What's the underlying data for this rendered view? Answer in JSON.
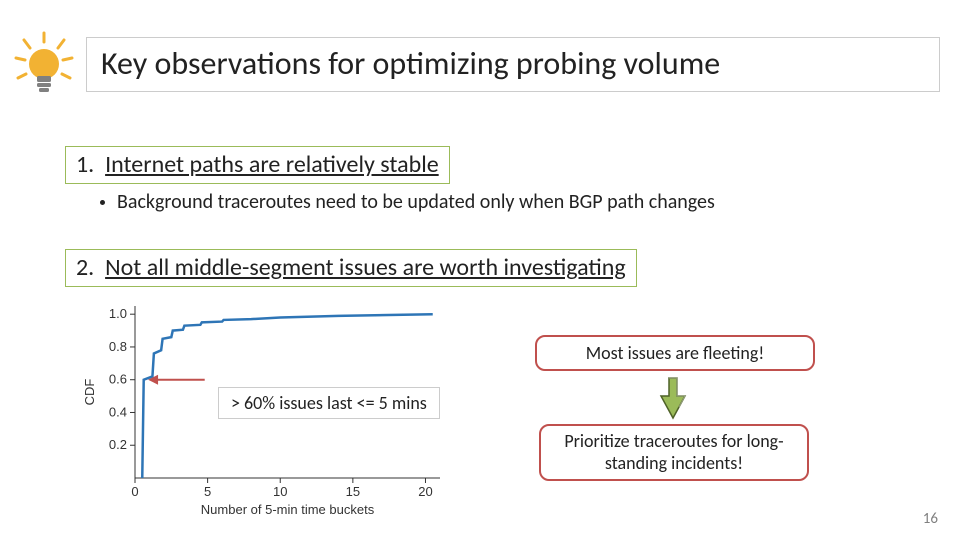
{
  "title": "Key observations for optimizing probing volume",
  "obs1": {
    "num": "1.",
    "text": "Internet paths are relatively stable",
    "bullet": "Background traceroutes need to be updated only when BGP path changes"
  },
  "obs2": {
    "num": "2.",
    "text": "Not all middle-segment issues are worth investigating"
  },
  "callout_60": "> 60% issues last <= 5 mins",
  "callout_fleeting": "Most issues are fleeting!",
  "callout_prioritize": "Prioritize traceroutes for long-standing incidents!",
  "page_number": "16",
  "chart": {
    "type": "line",
    "ylabel": "CDF",
    "xlabel": "Number of 5-min time buckets",
    "xlim": [
      0,
      21
    ],
    "ylim": [
      0,
      1.05
    ],
    "xticks": [
      0,
      5,
      10,
      15,
      20
    ],
    "yticks": [
      0.2,
      0.4,
      0.6,
      0.8,
      1.0
    ],
    "line_color": "#2e75b6",
    "line_width": 2.5,
    "axis_color": "#333333",
    "tick_fontsize": 13,
    "label_fontsize": 13,
    "data": [
      {
        "x": 0.5,
        "y": 0.0
      },
      {
        "x": 0.6,
        "y": 0.6
      },
      {
        "x": 1.2,
        "y": 0.62
      },
      {
        "x": 1.3,
        "y": 0.76
      },
      {
        "x": 1.8,
        "y": 0.78
      },
      {
        "x": 1.9,
        "y": 0.85
      },
      {
        "x": 2.5,
        "y": 0.86
      },
      {
        "x": 2.6,
        "y": 0.9
      },
      {
        "x": 3.3,
        "y": 0.905
      },
      {
        "x": 3.4,
        "y": 0.93
      },
      {
        "x": 4.5,
        "y": 0.935
      },
      {
        "x": 4.6,
        "y": 0.95
      },
      {
        "x": 6.0,
        "y": 0.955
      },
      {
        "x": 6.1,
        "y": 0.965
      },
      {
        "x": 8.0,
        "y": 0.97
      },
      {
        "x": 10.0,
        "y": 0.98
      },
      {
        "x": 14.0,
        "y": 0.99
      },
      {
        "x": 20.5,
        "y": 1.0
      }
    ],
    "red_arrow": {
      "color": "#c0504d",
      "from_x": 4.8,
      "from_y": 0.6,
      "to_x": 0.9,
      "to_y": 0.6
    }
  },
  "colors": {
    "green_border": "#9bbb59",
    "red_border": "#c0504d",
    "green_arrow_fill": "#9bbb59",
    "green_arrow_stroke": "#4f6228",
    "bulb_yellow": "#f2b233",
    "bulb_base": "#808080"
  }
}
